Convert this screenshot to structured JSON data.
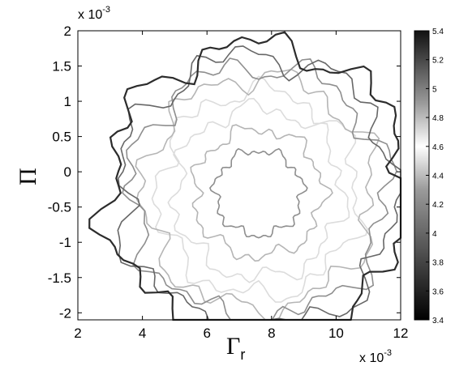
{
  "chart_data": {
    "type": "contour",
    "title": "",
    "xlabel": "Γ",
    "xlabel_sub": "r",
    "ylabel": "Π",
    "x_multiplier": "x 10",
    "x_multiplier_exp": "-3",
    "y_multiplier": "x 10",
    "y_multiplier_exp": "-3",
    "xlim": [
      2,
      12
    ],
    "ylim": [
      -2.1,
      2
    ],
    "x_ticks": [
      "2",
      "4",
      "6",
      "8",
      "10",
      "12"
    ],
    "y_ticks": [
      "2",
      "1.5",
      "1",
      "0.5",
      "0",
      "-0.5",
      "-1",
      "-1.5",
      "-2"
    ],
    "grid": false,
    "colormap": "gray",
    "colorbar": {
      "range": [
        3.4,
        5.4
      ],
      "ticks": [
        "5.4",
        "5.2",
        "5",
        "4.8",
        "4.6",
        "4.4",
        "4.2",
        "4",
        "3.8",
        "3.6",
        "3.4"
      ],
      "dark_color": "#000000",
      "light_color": "#ffffff"
    },
    "center": [
      7.6,
      -0.3
    ],
    "contours": [
      {
        "level": 5.1,
        "rx": 1.35,
        "ry": 0.6
      },
      {
        "level": 4.9,
        "rx": 2.0,
        "ry": 0.9
      },
      {
        "level": 4.7,
        "rx": 2.6,
        "ry": 1.2
      },
      {
        "level": 4.5,
        "rx": 3.1,
        "ry": 1.45
      },
      {
        "level": 4.3,
        "rx": 3.55,
        "ry": 1.65
      },
      {
        "level": 4.1,
        "rx": 3.95,
        "ry": 1.8
      },
      {
        "level": 3.9,
        "rx": 4.3,
        "ry": 1.95
      },
      {
        "level": 3.6,
        "rx": 4.7,
        "ry": 2.1
      }
    ]
  }
}
